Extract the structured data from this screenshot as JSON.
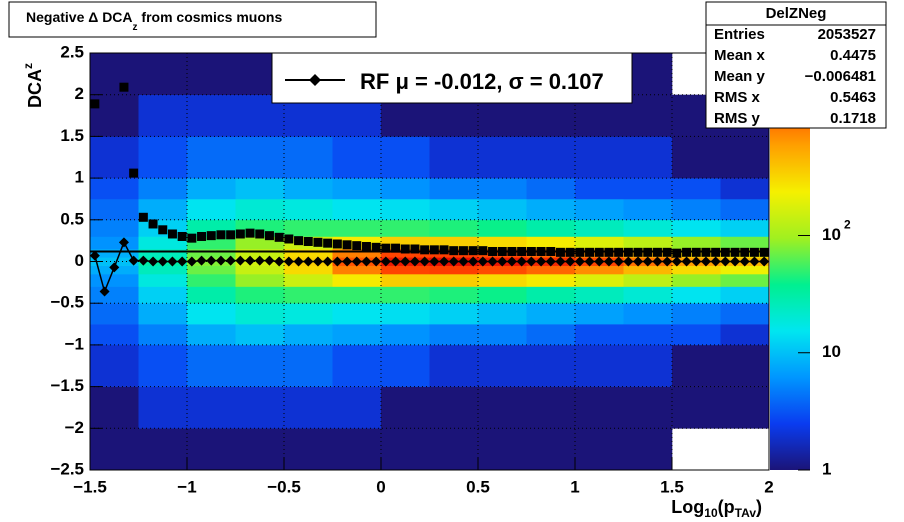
{
  "chart_data": {
    "type": "heatmap",
    "title": [
      "Negative Δ DCA",
      "z",
      " from cosmics muons"
    ],
    "x_label": [
      "Log",
      "10",
      "(p",
      "TAv",
      ")"
    ],
    "y_label": [
      "DCA",
      "z"
    ],
    "xlim": [
      -1.5,
      2
    ],
    "ylim": [
      -2.5,
      2.5
    ],
    "zlim": [
      1,
      3600
    ],
    "log_z": true,
    "grid": true,
    "xticks": [
      {
        "value": -1.5,
        "label": "−1.5"
      },
      {
        "value": -1,
        "label": "−1"
      },
      {
        "value": -0.5,
        "label": "−0.5"
      },
      0,
      0.5,
      1,
      1.5,
      2
    ],
    "yticks": [
      {
        "value": -2.5,
        "label": "−2.5"
      },
      {
        "value": -2,
        "label": "−2"
      },
      {
        "value": -1.5,
        "label": "−1.5"
      },
      {
        "value": -1,
        "label": "−1"
      },
      {
        "value": -0.5,
        "label": "−0.5"
      },
      0,
      0.5,
      1,
      1.5,
      2,
      2.5
    ],
    "zticks": [
      1,
      10,
      {
        "value": 100,
        "label": "10",
        "exponent": "2"
      }
    ],
    "palette": [
      "#1b1478",
      "#0a3cf0",
      "#0096ff",
      "#00e6f0",
      "#00f090",
      "#a0f020",
      "#f5f000",
      "#ffa000",
      "#ff4000",
      "#e00000"
    ],
    "heatmap": {
      "xbins": [
        -1.5,
        -1.25,
        -1,
        -0.75,
        -0.5,
        -0.25,
        0,
        0.25,
        0.5,
        0.75,
        1,
        1.25,
        1.5,
        1.75,
        2
      ],
      "ybins": [
        -2.5,
        -2,
        -1.5,
        -1,
        -0.75,
        -0.5,
        -0.3,
        -0.15,
        -0.05,
        0.05,
        0.15,
        0.3,
        0.5,
        0.75,
        1,
        1.5,
        2,
        2.5
      ],
      "z": [
        [
          1,
          1,
          2,
          3,
          4,
          5,
          6,
          8,
          10,
          8,
          6,
          5,
          4,
          3,
          2,
          1,
          1
        ],
        [
          1,
          2,
          3,
          5,
          8,
          12,
          18,
          25,
          30,
          25,
          18,
          12,
          8,
          5,
          3,
          2,
          1
        ],
        [
          1,
          2,
          4,
          8,
          15,
          30,
          50,
          70,
          80,
          70,
          50,
          30,
          15,
          8,
          4,
          2,
          1
        ],
        [
          1,
          2,
          4,
          10,
          20,
          45,
          90,
          140,
          160,
          140,
          90,
          45,
          20,
          10,
          4,
          2,
          1
        ],
        [
          1,
          2,
          4,
          8,
          18,
          50,
          150,
          300,
          350,
          300,
          150,
          50,
          18,
          8,
          4,
          2,
          1
        ],
        [
          1,
          2,
          3,
          7,
          15,
          50,
          250,
          800,
          1200,
          800,
          250,
          50,
          15,
          7,
          3,
          2,
          1
        ],
        [
          1,
          1,
          3,
          6,
          14,
          50,
          350,
          1400,
          2500,
          1400,
          350,
          50,
          14,
          6,
          3,
          1,
          1
        ],
        [
          1,
          1,
          2,
          5,
          12,
          45,
          350,
          1500,
          3000,
          1500,
          350,
          45,
          12,
          5,
          2,
          1,
          1
        ],
        [
          1,
          1,
          2,
          5,
          10,
          40,
          300,
          1300,
          2600,
          1300,
          300,
          40,
          10,
          5,
          2,
          1,
          1
        ],
        [
          1,
          1,
          2,
          4,
          8,
          30,
          250,
          1000,
          2000,
          1000,
          250,
          30,
          8,
          4,
          2,
          1,
          1
        ],
        [
          1,
          1,
          2,
          3,
          7,
          25,
          180,
          700,
          1400,
          700,
          180,
          25,
          7,
          3,
          2,
          1,
          1
        ],
        [
          1,
          1,
          2,
          3,
          6,
          20,
          130,
          450,
          900,
          450,
          130,
          20,
          6,
          3,
          2,
          1,
          1
        ],
        [
          0,
          1,
          1,
          3,
          5,
          15,
          90,
          300,
          600,
          300,
          90,
          15,
          5,
          3,
          1,
          1,
          0
        ],
        [
          0,
          1,
          1,
          2,
          4,
          12,
          70,
          220,
          450,
          220,
          70,
          12,
          4,
          2,
          1,
          1,
          0
        ]
      ]
    },
    "profile_x": [
      -1.475,
      -1.425,
      -1.375,
      -1.325,
      -1.275,
      -1.225,
      -1.175,
      -1.125,
      -1.075,
      -1.025,
      -0.975,
      -0.925,
      -0.875,
      -0.825,
      -0.775,
      -0.725,
      -0.675,
      -0.625,
      -0.575,
      -0.525,
      -0.475,
      -0.425,
      -0.375,
      -0.325,
      -0.275,
      -0.225,
      -0.175,
      -0.125,
      -0.075,
      -0.025,
      0.025,
      0.075,
      0.125,
      0.175,
      0.225,
      0.275,
      0.325,
      0.375,
      0.425,
      0.475,
      0.525,
      0.575,
      0.625,
      0.675,
      0.725,
      0.775,
      0.825,
      0.875,
      0.925,
      0.975,
      1.025,
      1.075,
      1.125,
      1.175,
      1.225,
      1.275,
      1.325,
      1.375,
      1.425,
      1.475,
      1.525,
      1.575,
      1.625,
      1.675,
      1.725,
      1.775,
      1.825,
      1.875,
      1.925,
      1.975
    ],
    "series": [
      {
        "marker": "square",
        "color": "#000000",
        "values": [
          1.89,
          null,
          null,
          2.09,
          1.06,
          0.53,
          0.45,
          0.38,
          0.33,
          0.3,
          0.28,
          0.3,
          0.31,
          0.32,
          0.32,
          0.33,
          0.34,
          0.33,
          0.31,
          0.29,
          0.27,
          0.25,
          0.24,
          0.23,
          0.22,
          0.21,
          0.2,
          0.19,
          0.18,
          0.17,
          0.16,
          0.16,
          0.15,
          0.15,
          0.14,
          0.14,
          0.14,
          0.13,
          0.13,
          0.13,
          0.13,
          0.12,
          0.12,
          0.12,
          0.12,
          0.12,
          0.12,
          0.12,
          0.11,
          0.11,
          0.11,
          0.11,
          0.11,
          0.11,
          0.11,
          0.11,
          0.11,
          0.11,
          0.11,
          0.11,
          0.1,
          0.11,
          0.11,
          0.11,
          0.11,
          0.11,
          0.11,
          0.11,
          0.11,
          0.11
        ]
      },
      {
        "marker": "diamond",
        "color": "#000000",
        "values": [
          0.07,
          -0.36,
          -0.07,
          0.23,
          0.01,
          0.01,
          0,
          0,
          0,
          0,
          0,
          0.01,
          0.01,
          0.01,
          0.01,
          0.01,
          0.01,
          0.01,
          0.01,
          0,
          0,
          0,
          0,
          0,
          0,
          0,
          0,
          0,
          0,
          0,
          0,
          0,
          0,
          0,
          0,
          0,
          0,
          0,
          0,
          0,
          0,
          0,
          0,
          0,
          0,
          0,
          0,
          0,
          0,
          0,
          0,
          0,
          0,
          0,
          0,
          0,
          0,
          0,
          0,
          0,
          0,
          0,
          0,
          0,
          0,
          0,
          0,
          0,
          0,
          0
        ]
      }
    ],
    "reference_line": 0.12,
    "legend": "RF μ = -0.012, σ =   0.107",
    "stats": {
      "name": "DelZNeg",
      "rows": [
        [
          "Entries",
          "2053527"
        ],
        [
          "Mean x",
          "0.4475"
        ],
        [
          "Mean y",
          "−0.006481"
        ],
        [
          "RMS x",
          "0.5463"
        ],
        [
          "RMS y",
          "0.1718"
        ]
      ]
    }
  }
}
